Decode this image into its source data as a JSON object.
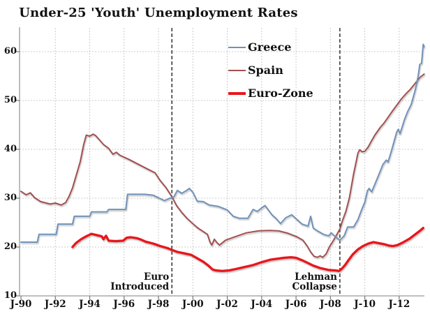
{
  "title": "Under-25 'Youth' Unemployment Rates",
  "legend": {
    "items": [
      {
        "label": "Greece",
        "color": "#6f92b9",
        "thickness": 2
      },
      {
        "label": "Spain",
        "color": "#a1504f",
        "thickness": 2
      },
      {
        "label": "Euro-Zone",
        "color": "#e8161c",
        "thickness": 4
      }
    ]
  },
  "colors": {
    "greece": "#6f92b9",
    "spain": "#a1504f",
    "eurozone": "#e8161c",
    "grid": "#cccccc",
    "axis": "#999999",
    "annotation_line": "#111111",
    "text": "#111111",
    "background": "#ffffff"
  },
  "chart_data": {
    "type": "line",
    "title": "Under-25 'Youth' Unemployment Rates",
    "xlabel": "",
    "ylabel": "",
    "ylim": [
      10,
      65
    ],
    "grid": "dashed",
    "legend_position": "upper-center-inside",
    "y_ticks": [
      {
        "label": "10",
        "value": 10
      },
      {
        "label": "20",
        "value": 20
      },
      {
        "label": "30",
        "value": 30
      },
      {
        "label": "40",
        "value": 40
      },
      {
        "label": "50",
        "value": 50
      },
      {
        "label": "60",
        "value": 60
      }
    ],
    "x_ticks": [
      {
        "label": "J-90",
        "year": 1990
      },
      {
        "label": "J-92",
        "year": 1992
      },
      {
        "label": "J-94",
        "year": 1994
      },
      {
        "label": "J-96",
        "year": 1996
      },
      {
        "label": "J-98",
        "year": 1998
      },
      {
        "label": "J-00",
        "year": 2000
      },
      {
        "label": "J-02",
        "year": 2002
      },
      {
        "label": "J-04",
        "year": 2004
      },
      {
        "label": "J-06",
        "year": 2006
      },
      {
        "label": "J-08",
        "year": 2008
      },
      {
        "label": "J-10",
        "year": 2010
      },
      {
        "label": "J-12",
        "year": 2012
      }
    ],
    "annotations": [
      {
        "line1": "Euro",
        "line2": "Introduced",
        "year": 1998.78
      },
      {
        "line1": "Lehman",
        "line2": "Collapse",
        "year": 2008.55
      }
    ],
    "series": [
      {
        "name": "Spain",
        "color": "#a1504f",
        "width": 2,
        "points": [
          [
            1990.0,
            31.4
          ],
          [
            1990.3,
            30.7
          ],
          [
            1990.55,
            31.1
          ],
          [
            1990.8,
            30.1
          ],
          [
            1991.15,
            29.3
          ],
          [
            1991.7,
            28.8
          ],
          [
            1992.0,
            29.0
          ],
          [
            1992.35,
            28.6
          ],
          [
            1992.6,
            29.1
          ],
          [
            1992.8,
            30.4
          ],
          [
            1993.0,
            32.1
          ],
          [
            1993.2,
            34.5
          ],
          [
            1993.45,
            37.5
          ],
          [
            1993.65,
            41.0
          ],
          [
            1993.8,
            42.9
          ],
          [
            1994.0,
            42.7
          ],
          [
            1994.2,
            43.1
          ],
          [
            1994.35,
            42.8
          ],
          [
            1994.55,
            42.0
          ],
          [
            1994.8,
            41.0
          ],
          [
            1995.1,
            40.2
          ],
          [
            1995.35,
            39.0
          ],
          [
            1995.55,
            39.4
          ],
          [
            1995.75,
            38.8
          ],
          [
            1996.3,
            37.9
          ],
          [
            1996.85,
            36.9
          ],
          [
            1997.4,
            35.9
          ],
          [
            1997.8,
            35.2
          ],
          [
            1998.1,
            33.6
          ],
          [
            1998.45,
            32.1
          ],
          [
            1998.78,
            30.3
          ],
          [
            1999.05,
            28.5
          ],
          [
            1999.35,
            27.1
          ],
          [
            1999.65,
            25.9
          ],
          [
            1999.9,
            25.1
          ],
          [
            2000.25,
            24.0
          ],
          [
            2000.55,
            23.3
          ],
          [
            2000.85,
            22.6
          ],
          [
            2001.0,
            21.0
          ],
          [
            2001.1,
            20.4
          ],
          [
            2001.25,
            21.6
          ],
          [
            2001.4,
            20.9
          ],
          [
            2001.55,
            20.4
          ],
          [
            2001.9,
            21.4
          ],
          [
            2002.45,
            22.1
          ],
          [
            2003.1,
            22.9
          ],
          [
            2003.8,
            23.3
          ],
          [
            2004.5,
            23.4
          ],
          [
            2005.0,
            23.3
          ],
          [
            2005.55,
            22.8
          ],
          [
            2006.05,
            22.1
          ],
          [
            2006.4,
            21.4
          ],
          [
            2006.65,
            20.2
          ],
          [
            2006.85,
            19.0
          ],
          [
            2007.05,
            18.1
          ],
          [
            2007.25,
            17.9
          ],
          [
            2007.4,
            18.2
          ],
          [
            2007.55,
            17.9
          ],
          [
            2007.75,
            18.6
          ],
          [
            2007.95,
            20.1
          ],
          [
            2008.1,
            20.9
          ],
          [
            2008.3,
            22.1
          ],
          [
            2008.55,
            23.7
          ],
          [
            2008.7,
            25.4
          ],
          [
            2008.9,
            27.3
          ],
          [
            2009.1,
            30.0
          ],
          [
            2009.2,
            32.0
          ],
          [
            2009.35,
            35.0
          ],
          [
            2009.5,
            37.5
          ],
          [
            2009.6,
            39.2
          ],
          [
            2009.7,
            39.9
          ],
          [
            2009.85,
            39.5
          ],
          [
            2010.0,
            39.6
          ],
          [
            2010.2,
            40.5
          ],
          [
            2010.4,
            41.8
          ],
          [
            2010.6,
            43.0
          ],
          [
            2010.9,
            44.5
          ],
          [
            2011.1,
            45.3
          ],
          [
            2011.4,
            46.8
          ],
          [
            2011.6,
            47.8
          ],
          [
            2011.85,
            49.0
          ],
          [
            2012.1,
            50.2
          ],
          [
            2012.4,
            51.4
          ],
          [
            2012.65,
            52.3
          ],
          [
            2012.95,
            53.6
          ],
          [
            2013.2,
            54.7
          ],
          [
            2013.45,
            55.4
          ]
        ]
      },
      {
        "name": "Greece",
        "color": "#6f92b9",
        "width": 2,
        "points": [
          [
            1990.0,
            21.0
          ],
          [
            1990.95,
            21.0
          ],
          [
            1991.05,
            22.6
          ],
          [
            1992.05,
            22.6
          ],
          [
            1992.15,
            24.7
          ],
          [
            1993.0,
            24.7
          ],
          [
            1993.1,
            26.3
          ],
          [
            1994.0,
            26.3
          ],
          [
            1994.1,
            27.2
          ],
          [
            1995.0,
            27.2
          ],
          [
            1995.1,
            27.7
          ],
          [
            1996.1,
            27.7
          ],
          [
            1996.2,
            30.8
          ],
          [
            1997.2,
            30.8
          ],
          [
            1997.7,
            30.6
          ],
          [
            1998.05,
            30.0
          ],
          [
            1998.35,
            29.5
          ],
          [
            1998.6,
            29.9
          ],
          [
            1998.9,
            30.3
          ],
          [
            1999.1,
            31.6
          ],
          [
            1999.35,
            31.0
          ],
          [
            1999.6,
            31.5
          ],
          [
            1999.8,
            32.0
          ],
          [
            2000.0,
            31.2
          ],
          [
            2000.25,
            29.4
          ],
          [
            2000.6,
            29.3
          ],
          [
            2000.95,
            28.6
          ],
          [
            2001.5,
            28.3
          ],
          [
            2002.0,
            27.6
          ],
          [
            2002.35,
            26.3
          ],
          [
            2002.7,
            25.9
          ],
          [
            2003.2,
            25.9
          ],
          [
            2003.5,
            27.7
          ],
          [
            2003.75,
            27.3
          ],
          [
            2004.0,
            28.0
          ],
          [
            2004.2,
            28.5
          ],
          [
            2004.6,
            26.6
          ],
          [
            2004.85,
            25.8
          ],
          [
            2005.1,
            24.8
          ],
          [
            2005.4,
            26.0
          ],
          [
            2005.75,
            26.6
          ],
          [
            2006.1,
            25.5
          ],
          [
            2006.35,
            24.7
          ],
          [
            2006.7,
            24.3
          ],
          [
            2006.85,
            26.3
          ],
          [
            2007.0,
            23.9
          ],
          [
            2007.25,
            23.3
          ],
          [
            2007.6,
            22.6
          ],
          [
            2007.9,
            22.3
          ],
          [
            2008.05,
            22.9
          ],
          [
            2008.3,
            22.1
          ],
          [
            2008.55,
            21.4
          ],
          [
            2008.8,
            22.3
          ],
          [
            2009.0,
            24.1
          ],
          [
            2009.35,
            24.1
          ],
          [
            2009.6,
            25.6
          ],
          [
            2009.8,
            27.5
          ],
          [
            2010.0,
            29.2
          ],
          [
            2010.15,
            31.5
          ],
          [
            2010.25,
            32.0
          ],
          [
            2010.4,
            31.3
          ],
          [
            2010.6,
            33.0
          ],
          [
            2010.85,
            35.1
          ],
          [
            2011.05,
            36.9
          ],
          [
            2011.25,
            37.8
          ],
          [
            2011.35,
            37.4
          ],
          [
            2011.55,
            39.7
          ],
          [
            2011.7,
            41.6
          ],
          [
            2011.85,
            43.5
          ],
          [
            2011.95,
            44.1
          ],
          [
            2012.05,
            43.2
          ],
          [
            2012.3,
            46.0
          ],
          [
            2012.5,
            47.8
          ],
          [
            2012.7,
            49.2
          ],
          [
            2012.85,
            51.1
          ],
          [
            2012.95,
            52.4
          ],
          [
            2013.1,
            55.0
          ],
          [
            2013.2,
            57.4
          ],
          [
            2013.3,
            57.6
          ],
          [
            2013.4,
            61.5
          ],
          [
            2013.45,
            61.0
          ]
        ]
      },
      {
        "name": "Euro-Zone",
        "color": "#e8161c",
        "width": 3.4,
        "points": [
          [
            1993.0,
            20.0
          ],
          [
            1993.2,
            20.8
          ],
          [
            1993.5,
            21.6
          ],
          [
            1993.8,
            22.2
          ],
          [
            1994.1,
            22.7
          ],
          [
            1994.45,
            22.4
          ],
          [
            1994.7,
            22.2
          ],
          [
            1994.8,
            21.6
          ],
          [
            1994.95,
            22.3
          ],
          [
            1995.1,
            21.3
          ],
          [
            1995.5,
            21.2
          ],
          [
            1995.95,
            21.3
          ],
          [
            1996.15,
            21.9
          ],
          [
            1996.4,
            22.0
          ],
          [
            1996.75,
            21.8
          ],
          [
            1997.0,
            21.5
          ],
          [
            1997.25,
            21.1
          ],
          [
            1997.7,
            20.7
          ],
          [
            1998.1,
            20.2
          ],
          [
            1998.5,
            19.8
          ],
          [
            1998.78,
            19.4
          ],
          [
            1999.1,
            19.0
          ],
          [
            1999.5,
            18.7
          ],
          [
            1999.9,
            18.4
          ],
          [
            2000.2,
            17.8
          ],
          [
            2000.6,
            17.0
          ],
          [
            2000.9,
            16.2
          ],
          [
            2001.15,
            15.4
          ],
          [
            2001.35,
            15.2
          ],
          [
            2001.7,
            15.1
          ],
          [
            2002.1,
            15.2
          ],
          [
            2002.5,
            15.5
          ],
          [
            2003.0,
            15.9
          ],
          [
            2003.5,
            16.3
          ],
          [
            2004.0,
            16.9
          ],
          [
            2004.5,
            17.4
          ],
          [
            2004.9,
            17.6
          ],
          [
            2005.3,
            17.8
          ],
          [
            2005.7,
            17.9
          ],
          [
            2006.0,
            17.8
          ],
          [
            2006.35,
            17.3
          ],
          [
            2006.65,
            16.8
          ],
          [
            2007.0,
            16.2
          ],
          [
            2007.4,
            15.7
          ],
          [
            2007.9,
            15.3
          ],
          [
            2008.3,
            15.2
          ],
          [
            2008.5,
            15.1
          ],
          [
            2008.65,
            15.5
          ],
          [
            2008.85,
            16.3
          ],
          [
            2009.05,
            17.3
          ],
          [
            2009.3,
            18.5
          ],
          [
            2009.6,
            19.5
          ],
          [
            2009.9,
            20.2
          ],
          [
            2010.2,
            20.7
          ],
          [
            2010.5,
            21.0
          ],
          [
            2010.8,
            20.8
          ],
          [
            2011.1,
            20.6
          ],
          [
            2011.4,
            20.3
          ],
          [
            2011.65,
            20.2
          ],
          [
            2011.9,
            20.4
          ],
          [
            2012.2,
            20.9
          ],
          [
            2012.6,
            21.7
          ],
          [
            2012.9,
            22.5
          ],
          [
            2013.2,
            23.3
          ],
          [
            2013.4,
            23.9
          ]
        ]
      }
    ]
  }
}
